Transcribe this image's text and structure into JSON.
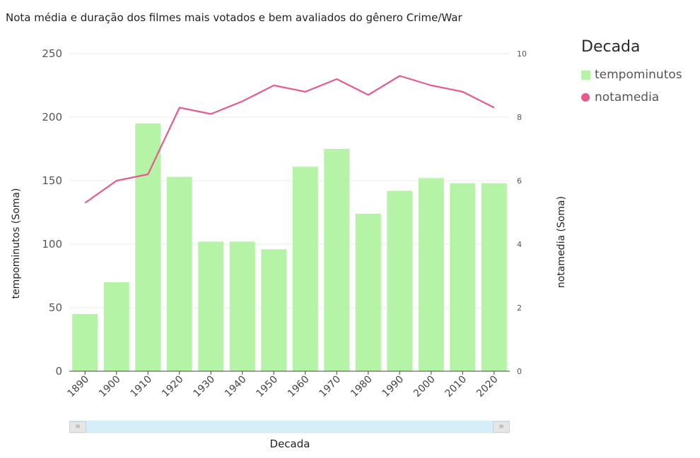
{
  "chart_data": {
    "type": "bar",
    "title": "Nota média e duração dos filmes mais votados e bem avaliados do gênero Crime/War",
    "xlabel": "Decada",
    "ylabel": "tempominutos (Soma)",
    "y2label": "notamedia (Soma)",
    "legend_title": "Decada",
    "legend_position": "right",
    "categories": [
      "1890",
      "1900",
      "1910",
      "1920",
      "1930",
      "1940",
      "1950",
      "1960",
      "1970",
      "1980",
      "1990",
      "2000",
      "2010",
      "2020"
    ],
    "series": [
      {
        "name": "tempominutos",
        "type": "bar",
        "axis": "left",
        "color": "#b5f3a7",
        "values": [
          45,
          70,
          195,
          153,
          102,
          102,
          96,
          161,
          175,
          124,
          142,
          152,
          148,
          148
        ]
      },
      {
        "name": "notamedia",
        "type": "line",
        "axis": "right",
        "color": "#e85a8b",
        "values": [
          5.3,
          6.0,
          6.2,
          8.3,
          8.1,
          8.5,
          9.0,
          8.8,
          9.2,
          8.7,
          9.3,
          9.0,
          8.8,
          8.3
        ]
      }
    ],
    "ylim": [
      0,
      250
    ],
    "yticks": [
      0,
      50,
      100,
      150,
      200,
      250
    ],
    "y2lim": [
      0,
      10
    ],
    "y2ticks": [
      0,
      2,
      4,
      6,
      8,
      10
    ],
    "grid": true
  },
  "scrollbar": {
    "left_handle": "≡",
    "right_handle": "≡"
  }
}
